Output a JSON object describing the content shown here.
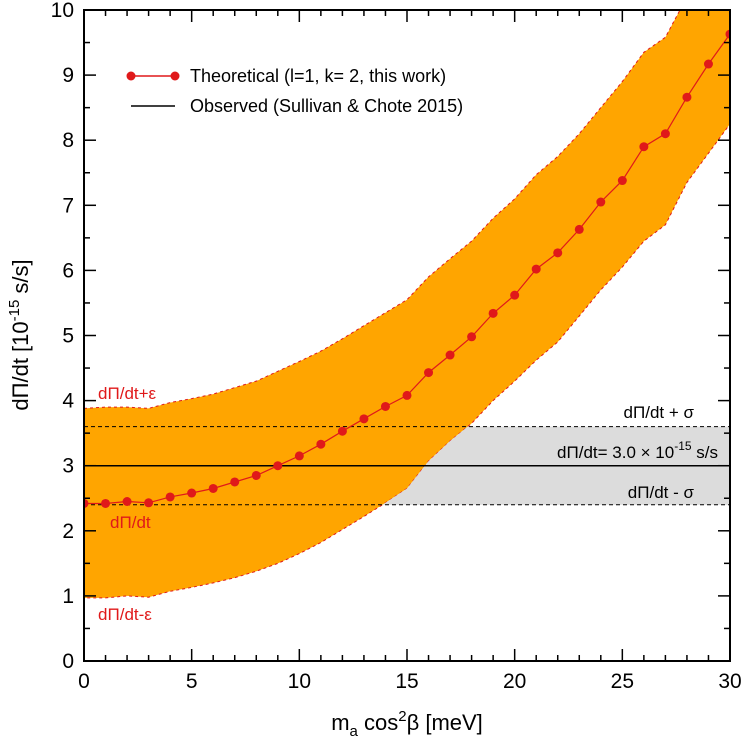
{
  "chart_data": {
    "type": "line",
    "xlabel": {
      "main": "m",
      "sub": "a",
      "mid": " cos",
      "sup": "2",
      "tail": "β [meV]"
    },
    "ylabel": {
      "main": "dΠ/dt  [10",
      "sup": "-15",
      "tail": " s/s]"
    },
    "xlim": [
      0,
      30
    ],
    "ylim": [
      0,
      10
    ],
    "x_ticks": [
      0,
      5,
      10,
      15,
      20,
      25,
      30
    ],
    "x_tick_labels": [
      "0",
      "5",
      "10",
      "15",
      "20",
      "25",
      "30"
    ],
    "y_ticks": [
      0,
      1,
      2,
      3,
      4,
      5,
      6,
      7,
      8,
      9,
      10
    ],
    "y_tick_labels": [
      "0",
      "1",
      "2",
      "3",
      "4",
      "5",
      "6",
      "7",
      "8",
      "9",
      "10"
    ],
    "grid": false,
    "legend_position": "top-left",
    "legend": [
      {
        "label": "Theoretical (l=1, k= 2, this work)",
        "color": "#e0191a",
        "marker": "circle"
      },
      {
        "label": "Observed (Sullivan &  Chote 2015)",
        "color": "#000000",
        "marker": "none"
      }
    ],
    "series": [
      {
        "name": "Theoretical (l=1, k= 2, this work)",
        "color": "#e0191a",
        "x": [
          0,
          1,
          2,
          3,
          4,
          5,
          6,
          7,
          8,
          9,
          10,
          11,
          12,
          13,
          14,
          15,
          16,
          17,
          18,
          19,
          20,
          21,
          22,
          23,
          24,
          25,
          26,
          27,
          28,
          29,
          30
        ],
        "y": [
          2.42,
          2.42,
          2.45,
          2.43,
          2.52,
          2.58,
          2.65,
          2.75,
          2.85,
          3.0,
          3.15,
          3.33,
          3.53,
          3.72,
          3.91,
          4.08,
          4.43,
          4.7,
          4.98,
          5.34,
          5.62,
          6.02,
          6.27,
          6.63,
          7.05,
          7.38,
          7.9,
          8.1,
          8.66,
          9.17,
          9.63
        ]
      }
    ],
    "band": {
      "name": "theoretical uncertainty",
      "color": "#ffa500",
      "x": [
        0,
        1,
        2,
        3,
        4,
        5,
        6,
        7,
        8,
        9,
        10,
        11,
        12,
        13,
        14,
        15,
        16,
        17,
        18,
        19,
        20,
        21,
        22,
        23,
        24,
        25,
        26,
        27,
        28,
        29,
        30
      ],
      "upper": [
        3.88,
        3.9,
        3.9,
        3.88,
        3.97,
        4.03,
        4.1,
        4.2,
        4.3,
        4.45,
        4.6,
        4.76,
        4.95,
        5.15,
        5.35,
        5.55,
        5.9,
        6.18,
        6.45,
        6.8,
        7.1,
        7.47,
        7.75,
        8.1,
        8.5,
        8.9,
        9.35,
        9.58,
        10.2,
        10.6,
        11.0
      ],
      "lower": [
        0.97,
        0.97,
        1.0,
        0.98,
        1.07,
        1.13,
        1.2,
        1.28,
        1.38,
        1.5,
        1.65,
        1.82,
        2.02,
        2.22,
        2.43,
        2.65,
        3.07,
        3.38,
        3.65,
        4.0,
        4.3,
        4.62,
        4.9,
        5.3,
        5.7,
        6.05,
        6.45,
        6.7,
        7.35,
        7.8,
        8.25
      ]
    },
    "observed": {
      "value": 3.0,
      "sigma_upper": 3.6,
      "sigma_lower": 2.4,
      "band_color": "#dcdcdc"
    },
    "annotations": {
      "upper_curve": "dΠ/dt+ε",
      "mid_curve": "dΠ/dt",
      "lower_curve": "dΠ/dt-ε",
      "obs_plus": "dΠ/dt + σ",
      "obs_value_main": "dΠ/dt= 3.0 × 10",
      "obs_value_sup": "-15",
      "obs_value_tail": " s/s",
      "obs_minus": "dΠ/dt - σ"
    }
  }
}
